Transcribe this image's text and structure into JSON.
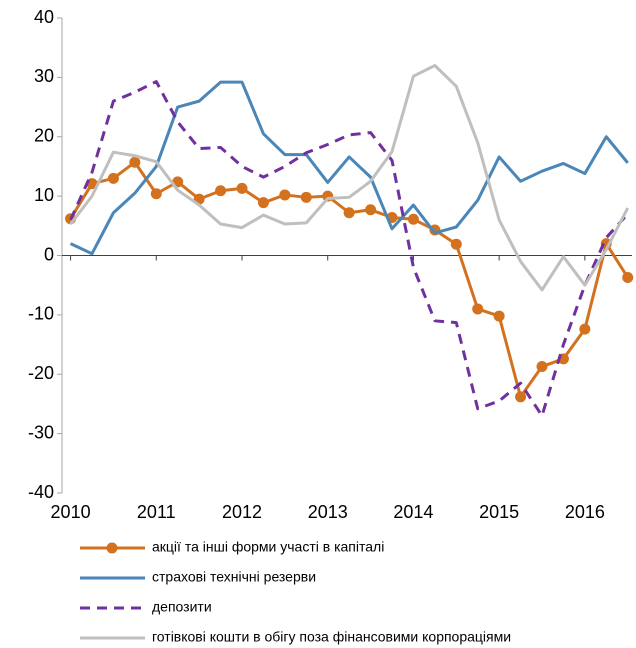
{
  "chart_data": {
    "type": "line",
    "x": [
      2010,
      2010.25,
      2010.5,
      2010.75,
      2011,
      2011.25,
      2011.5,
      2011.75,
      2012,
      2012.25,
      2012.5,
      2012.75,
      2013,
      2013.25,
      2013.5,
      2013.75,
      2014,
      2014.25,
      2014.5,
      2014.75,
      2015,
      2015.25,
      2015.5,
      2015.75,
      2016,
      2016.25,
      2016.5
    ],
    "xlim": [
      2009.9,
      2016.55
    ],
    "xticks": [
      2010,
      2011,
      2012,
      2013,
      2014,
      2015,
      2016
    ],
    "ylim": [
      -40,
      40
    ],
    "yticks": [
      -40,
      -30,
      -20,
      -10,
      0,
      10,
      20,
      30,
      40
    ],
    "series": [
      {
        "name": "акції та інші форми участі в капіталі",
        "color": "#d4711f",
        "markers": true,
        "dash": false,
        "values": [
          6.2,
          12.1,
          13,
          15.7,
          10.4,
          12.4,
          9.5,
          10.9,
          11.3,
          8.9,
          10.2,
          9.8,
          10,
          7.2,
          7.7,
          6.4,
          6.1,
          4.3,
          1.9,
          -9,
          -10.2,
          -23.8,
          -18.7,
          -17.4,
          -12.4,
          2,
          -3.7
        ]
      },
      {
        "name": "страхові технічні резерви",
        "color": "#4a86b8",
        "markers": false,
        "dash": false,
        "values": [
          2,
          0.3,
          7.2,
          10.5,
          15,
          25,
          26,
          29.2,
          29.2,
          20.5,
          17,
          17,
          12.3,
          16.6,
          13.2,
          4.5,
          8.5,
          3.8,
          4.8,
          9.3,
          16.6,
          12.5,
          14.2,
          15.5,
          13.8,
          20,
          15.6
        ]
      },
      {
        "name": "депозити",
        "color": "#7030a0",
        "markers": false,
        "dash": true,
        "values": [
          6,
          14,
          26,
          27.5,
          29.3,
          22.5,
          18,
          18.2,
          15,
          13.2,
          15,
          17.3,
          18.7,
          20.3,
          20.7,
          16,
          -2,
          -11,
          -11.3,
          -25.8,
          -24.5,
          -21.5,
          -27,
          -15,
          -5,
          3,
          7
        ]
      },
      {
        "name": "готівкові кошти в обігу поза фінансовими корпораціями",
        "color": "#bfbfbf",
        "markers": false,
        "dash": false,
        "values": [
          5.3,
          10,
          17.4,
          16.8,
          15.8,
          11,
          8.5,
          5.3,
          4.7,
          6.8,
          5.3,
          5.5,
          9.6,
          9.8,
          12.5,
          17.5,
          30.2,
          32,
          28.5,
          19,
          6,
          -1,
          -5.8,
          -0.2,
          -5,
          1,
          8
        ]
      }
    ]
  }
}
